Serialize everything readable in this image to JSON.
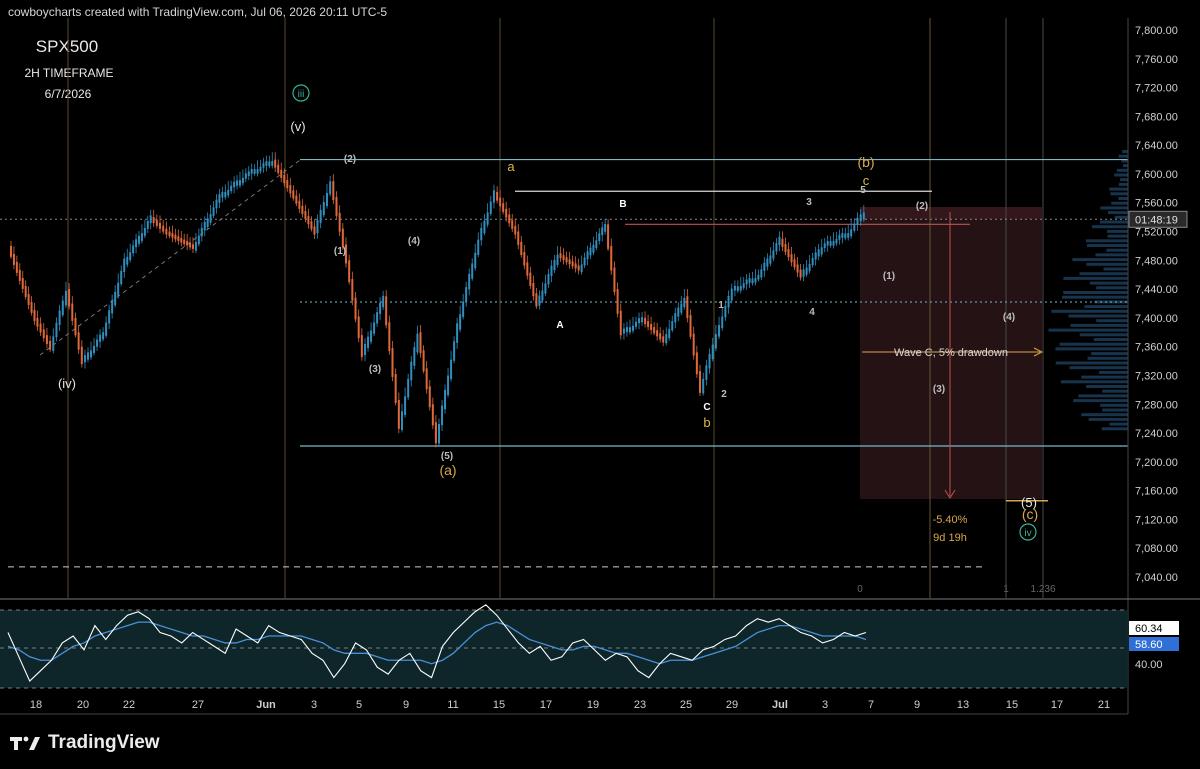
{
  "header": {
    "attribution": "cowboycharts created with TradingView.com, Jul 06, 2026 20:11 UTC-5"
  },
  "title_block": {
    "symbol": "SPX500",
    "timeframe": "2H TIMEFRAME",
    "date": "6/7/2026"
  },
  "brand": {
    "name": "TradingView"
  },
  "colors": {
    "up": "#2f8fbf",
    "down": "#e0693a",
    "rsi": "#ffffff",
    "rsi_ma": "#4a90d9",
    "box": "#7ab7c9",
    "orange": "#d9a64a",
    "teal": "#39b39a"
  },
  "chart_data": [
    {
      "type": "line",
      "title": "SPX500",
      "subtitle": "2H TIMEFRAME",
      "ylim": [
        7000,
        7810
      ],
      "y_ticks": [
        "7,800.00",
        "7,760.00",
        "7,720.00",
        "7,680.00",
        "7,640.00",
        "7,600.00",
        "7,560.00",
        "7,520.00",
        "7,480.00",
        "7,440.00",
        "7,400.00",
        "7,360.00",
        "7,320.00",
        "7,280.00",
        "7,240.00",
        "7,200.00",
        "7,160.00",
        "7,120.00",
        "7,080.00",
        "7,040.00"
      ],
      "x_ticks": [
        "18",
        "20",
        "22",
        "27",
        "Jun",
        "3",
        "5",
        "9",
        "11",
        "15",
        "17",
        "19",
        "23",
        "25",
        "29",
        "Jul",
        "3",
        "7",
        "9",
        "13",
        "15",
        "17",
        "21"
      ],
      "current_price_label": "01:48:19",
      "price_path": [
        {
          "x": 0.0,
          "y": 7500
        },
        {
          "x": 1.0,
          "y": 7400
        },
        {
          "x": 1.6,
          "y": 7360
        },
        {
          "x": 2.2,
          "y": 7440
        },
        {
          "x": 2.8,
          "y": 7340
        },
        {
          "x": 3.6,
          "y": 7380
        },
        {
          "x": 4.4,
          "y": 7480
        },
        {
          "x": 5.4,
          "y": 7540
        },
        {
          "x": 6.0,
          "y": 7520
        },
        {
          "x": 7.0,
          "y": 7500
        },
        {
          "x": 8.0,
          "y": 7570
        },
        {
          "x": 9.0,
          "y": 7600
        },
        {
          "x": 10.0,
          "y": 7620
        },
        {
          "x": 10.8,
          "y": 7570
        },
        {
          "x": 11.6,
          "y": 7520
        },
        {
          "x": 12.2,
          "y": 7590
        },
        {
          "x": 12.8,
          "y": 7480
        },
        {
          "x": 13.4,
          "y": 7350
        },
        {
          "x": 14.2,
          "y": 7430
        },
        {
          "x": 14.8,
          "y": 7250
        },
        {
          "x": 15.5,
          "y": 7380
        },
        {
          "x": 16.2,
          "y": 7230
        },
        {
          "x": 17.0,
          "y": 7390
        },
        {
          "x": 17.8,
          "y": 7510
        },
        {
          "x": 18.4,
          "y": 7575
        },
        {
          "x": 19.2,
          "y": 7520
        },
        {
          "x": 20.0,
          "y": 7420
        },
        {
          "x": 20.8,
          "y": 7490
        },
        {
          "x": 21.6,
          "y": 7470
        },
        {
          "x": 22.6,
          "y": 7530
        },
        {
          "x": 23.2,
          "y": 7380
        },
        {
          "x": 24.0,
          "y": 7400
        },
        {
          "x": 24.8,
          "y": 7370
        },
        {
          "x": 25.6,
          "y": 7430
        },
        {
          "x": 26.2,
          "y": 7300
        },
        {
          "x": 26.8,
          "y": 7380
        },
        {
          "x": 27.4,
          "y": 7440
        },
        {
          "x": 28.4,
          "y": 7460
        },
        {
          "x": 29.2,
          "y": 7510
        },
        {
          "x": 30.0,
          "y": 7460
        },
        {
          "x": 30.8,
          "y": 7500
        },
        {
          "x": 31.8,
          "y": 7520
        },
        {
          "x": 32.4,
          "y": 7548
        }
      ],
      "levels": [
        {
          "price": 7620,
          "style": "solid",
          "color": "#7ab7c9"
        },
        {
          "price": 7222,
          "style": "solid",
          "color": "#7ab7c9"
        },
        {
          "price": 7576,
          "style": "solid",
          "color": "#d8d8d8"
        },
        {
          "price": 7530,
          "style": "solid",
          "color": "#c0524a"
        },
        {
          "price": 7537,
          "style": "dotted",
          "color": "#888888"
        },
        {
          "price": 7422,
          "style": "dotted",
          "color": "#7ab7c9"
        },
        {
          "price": 7054,
          "style": "dashed",
          "color": "#cccccc"
        }
      ],
      "wave_labels": [
        {
          "text": "iii",
          "style": "circle-teal"
        },
        {
          "text": "(v)",
          "style": "white"
        },
        {
          "text": "(iv)",
          "style": "white"
        },
        {
          "text": "(2)",
          "style": "grey"
        },
        {
          "text": "(1)",
          "style": "grey"
        },
        {
          "text": "(4)",
          "style": "grey"
        },
        {
          "text": "(3)",
          "style": "grey"
        },
        {
          "text": "(5)",
          "style": "grey"
        },
        {
          "text": "(a)",
          "style": "orange"
        },
        {
          "text": "a",
          "style": "yellow"
        },
        {
          "text": "A",
          "style": "white-bold"
        },
        {
          "text": "B",
          "style": "white-bold"
        },
        {
          "text": "C",
          "style": "white-bold"
        },
        {
          "text": "b",
          "style": "yellow"
        },
        {
          "text": "1",
          "style": "grey"
        },
        {
          "text": "2",
          "style": "grey"
        },
        {
          "text": "3",
          "style": "grey"
        },
        {
          "text": "4",
          "style": "grey"
        },
        {
          "text": "5",
          "style": "grey"
        },
        {
          "text": "(b)",
          "style": "orange"
        },
        {
          "text": "c",
          "style": "yellow"
        },
        {
          "text": "(2)",
          "style": "grey"
        },
        {
          "text": "(1)",
          "style": "grey"
        },
        {
          "text": "(4)",
          "style": "grey"
        },
        {
          "text": "(3)",
          "style": "grey"
        },
        {
          "text": "(5)",
          "style": "white"
        },
        {
          "text": "(c)",
          "style": "orange"
        },
        {
          "text": "iv",
          "style": "circle-teal"
        }
      ],
      "annotations": {
        "wave_c": "Wave C, 5% drawdown",
        "pct": "-5.40%",
        "time": "9d 19h",
        "fib_0": "0",
        "fib_1": "1",
        "fib_1236": "1.236"
      }
    },
    {
      "type": "line",
      "ylim": [
        30,
        80
      ],
      "y_ticks": [
        "40.00"
      ],
      "series": [
        {
          "values": [
            62,
            48,
            34,
            40,
            46,
            56,
            60,
            52,
            66,
            58,
            66,
            72,
            74,
            70,
            62,
            60,
            56,
            62,
            58,
            54,
            50,
            64,
            60,
            56,
            66,
            62,
            60,
            58,
            50,
            46,
            36,
            44,
            56,
            52,
            42,
            38,
            46,
            50,
            40,
            36,
            54,
            62,
            68,
            74,
            78,
            72,
            64,
            56,
            50,
            54,
            46,
            48,
            56,
            58,
            52,
            46,
            50,
            48,
            40,
            36,
            44,
            50,
            48,
            46,
            52,
            54,
            58,
            60,
            66,
            70,
            68,
            70,
            66,
            62,
            60,
            56,
            58,
            62,
            60,
            62
          ]
        },
        {
          "values": [
            54,
            52,
            48,
            46,
            46,
            50,
            54,
            56,
            60,
            62,
            64,
            66,
            68,
            68,
            66,
            64,
            62,
            60,
            60,
            58,
            56,
            56,
            58,
            58,
            60,
            60,
            60,
            60,
            58,
            56,
            52,
            50,
            50,
            50,
            48,
            46,
            46,
            46,
            46,
            44,
            46,
            50,
            56,
            62,
            66,
            68,
            66,
            62,
            58,
            56,
            54,
            52,
            52,
            54,
            54,
            52,
            50,
            50,
            48,
            46,
            44,
            46,
            46,
            46,
            48,
            50,
            52,
            54,
            58,
            62,
            64,
            66,
            66,
            64,
            62,
            60,
            60,
            60,
            60,
            58
          ]
        }
      ],
      "current_values": [
        "60.34",
        "58.60"
      ]
    }
  ]
}
